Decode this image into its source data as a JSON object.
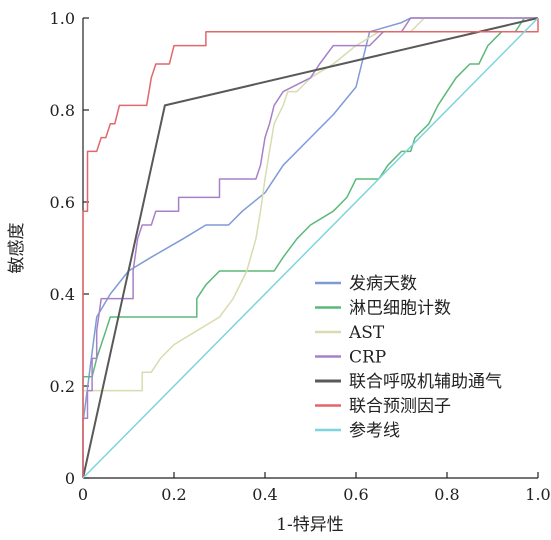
{
  "chart_data": {
    "type": "line",
    "title": "",
    "xlabel": "1-特异性",
    "ylabel": "敏感度",
    "xlim": [
      0,
      1
    ],
    "ylim": [
      0,
      1
    ],
    "x_ticks": [
      "0",
      "0.2",
      "0.4",
      "0.6",
      "0.8",
      "1.0"
    ],
    "y_ticks": [
      "0",
      "0.2",
      "0.4",
      "0.6",
      "0.8",
      "1.0"
    ],
    "grid": false,
    "legend_position": "bottom-right",
    "series": [
      {
        "name": "发病天数",
        "color": "#7f9bd6",
        "points": [
          [
            0,
            0
          ],
          [
            0,
            0.12
          ],
          [
            0.03,
            0.35
          ],
          [
            0.06,
            0.4
          ],
          [
            0.1,
            0.45
          ],
          [
            0.15,
            0.48
          ],
          [
            0.22,
            0.52
          ],
          [
            0.27,
            0.55
          ],
          [
            0.32,
            0.55
          ],
          [
            0.35,
            0.58
          ],
          [
            0.4,
            0.62
          ],
          [
            0.44,
            0.68
          ],
          [
            0.5,
            0.74
          ],
          [
            0.55,
            0.79
          ],
          [
            0.6,
            0.85
          ],
          [
            0.63,
            0.97
          ],
          [
            0.7,
            0.99
          ],
          [
            0.72,
            1.0
          ],
          [
            1.0,
            1.0
          ]
        ]
      },
      {
        "name": "淋巴细胞计数",
        "color": "#5cb87a",
        "points": [
          [
            0,
            0
          ],
          [
            0,
            0.22
          ],
          [
            0.02,
            0.22
          ],
          [
            0.03,
            0.26
          ],
          [
            0.04,
            0.29
          ],
          [
            0.05,
            0.32
          ],
          [
            0.06,
            0.35
          ],
          [
            0.25,
            0.35
          ],
          [
            0.25,
            0.39
          ],
          [
            0.27,
            0.42
          ],
          [
            0.3,
            0.45
          ],
          [
            0.42,
            0.45
          ],
          [
            0.44,
            0.48
          ],
          [
            0.47,
            0.52
          ],
          [
            0.5,
            0.55
          ],
          [
            0.55,
            0.58
          ],
          [
            0.58,
            0.61
          ],
          [
            0.6,
            0.65
          ],
          [
            0.65,
            0.65
          ],
          [
            0.67,
            0.68
          ],
          [
            0.7,
            0.71
          ],
          [
            0.72,
            0.71
          ],
          [
            0.73,
            0.74
          ],
          [
            0.76,
            0.77
          ],
          [
            0.78,
            0.81
          ],
          [
            0.8,
            0.84
          ],
          [
            0.82,
            0.87
          ],
          [
            0.85,
            0.9
          ],
          [
            0.87,
            0.9
          ],
          [
            0.89,
            0.94
          ],
          [
            0.92,
            0.97
          ],
          [
            0.95,
            0.97
          ],
          [
            0.97,
            1.0
          ],
          [
            1.0,
            1.0
          ]
        ]
      },
      {
        "name": "AST",
        "color": "#d9dcb0",
        "points": [
          [
            0,
            0
          ],
          [
            0,
            0.19
          ],
          [
            0.02,
            0.19
          ],
          [
            0.02,
            0.19
          ],
          [
            0.13,
            0.19
          ],
          [
            0.13,
            0.23
          ],
          [
            0.15,
            0.23
          ],
          [
            0.17,
            0.26
          ],
          [
            0.2,
            0.29
          ],
          [
            0.25,
            0.32
          ],
          [
            0.3,
            0.35
          ],
          [
            0.33,
            0.39
          ],
          [
            0.36,
            0.45
          ],
          [
            0.38,
            0.52
          ],
          [
            0.39,
            0.58
          ],
          [
            0.4,
            0.65
          ],
          [
            0.41,
            0.71
          ],
          [
            0.42,
            0.77
          ],
          [
            0.44,
            0.81
          ],
          [
            0.45,
            0.84
          ],
          [
            0.47,
            0.84
          ],
          [
            0.5,
            0.87
          ],
          [
            0.55,
            0.9
          ],
          [
            0.6,
            0.94
          ],
          [
            0.65,
            0.97
          ],
          [
            0.72,
            0.97
          ],
          [
            0.75,
            1.0
          ],
          [
            1.0,
            1.0
          ]
        ]
      },
      {
        "name": "CRP",
        "color": "#a781c7",
        "points": [
          [
            0,
            0
          ],
          [
            0,
            0.13
          ],
          [
            0.01,
            0.13
          ],
          [
            0.01,
            0.19
          ],
          [
            0.02,
            0.19
          ],
          [
            0.02,
            0.26
          ],
          [
            0.03,
            0.26
          ],
          [
            0.03,
            0.32
          ],
          [
            0.04,
            0.39
          ],
          [
            0.11,
            0.39
          ],
          [
            0.11,
            0.45
          ],
          [
            0.12,
            0.52
          ],
          [
            0.13,
            0.55
          ],
          [
            0.15,
            0.55
          ],
          [
            0.16,
            0.58
          ],
          [
            0.21,
            0.58
          ],
          [
            0.21,
            0.61
          ],
          [
            0.3,
            0.61
          ],
          [
            0.3,
            0.65
          ],
          [
            0.38,
            0.65
          ],
          [
            0.39,
            0.68
          ],
          [
            0.4,
            0.74
          ],
          [
            0.41,
            0.77
          ],
          [
            0.42,
            0.81
          ],
          [
            0.44,
            0.84
          ],
          [
            0.5,
            0.87
          ],
          [
            0.52,
            0.9
          ],
          [
            0.55,
            0.94
          ],
          [
            0.63,
            0.94
          ],
          [
            0.66,
            0.97
          ],
          [
            0.7,
            0.97
          ],
          [
            0.72,
            1.0
          ],
          [
            1.0,
            1.0
          ]
        ]
      },
      {
        "name": "联合呼吸机辅助通气",
        "color": "#595959",
        "points": [
          [
            0,
            0
          ],
          [
            0.18,
            0.81
          ],
          [
            1.0,
            1.0
          ]
        ]
      },
      {
        "name": "联合预测因子",
        "color": "#e2676b",
        "points": [
          [
            0,
            0
          ],
          [
            0,
            0.58
          ],
          [
            0.01,
            0.58
          ],
          [
            0.01,
            0.71
          ],
          [
            0.03,
            0.71
          ],
          [
            0.04,
            0.74
          ],
          [
            0.05,
            0.74
          ],
          [
            0.06,
            0.77
          ],
          [
            0.07,
            0.77
          ],
          [
            0.08,
            0.81
          ],
          [
            0.14,
            0.81
          ],
          [
            0.15,
            0.87
          ],
          [
            0.16,
            0.9
          ],
          [
            0.19,
            0.9
          ],
          [
            0.2,
            0.94
          ],
          [
            0.27,
            0.94
          ],
          [
            0.27,
            0.97
          ],
          [
            0.35,
            0.97
          ],
          [
            0.4,
            0.97
          ],
          [
            1.0,
            0.97
          ],
          [
            1.0,
            1.0
          ]
        ]
      },
      {
        "name": "参考线",
        "color": "#7fd4dc",
        "points": [
          [
            0,
            0
          ],
          [
            1.0,
            1.0
          ]
        ]
      }
    ]
  }
}
